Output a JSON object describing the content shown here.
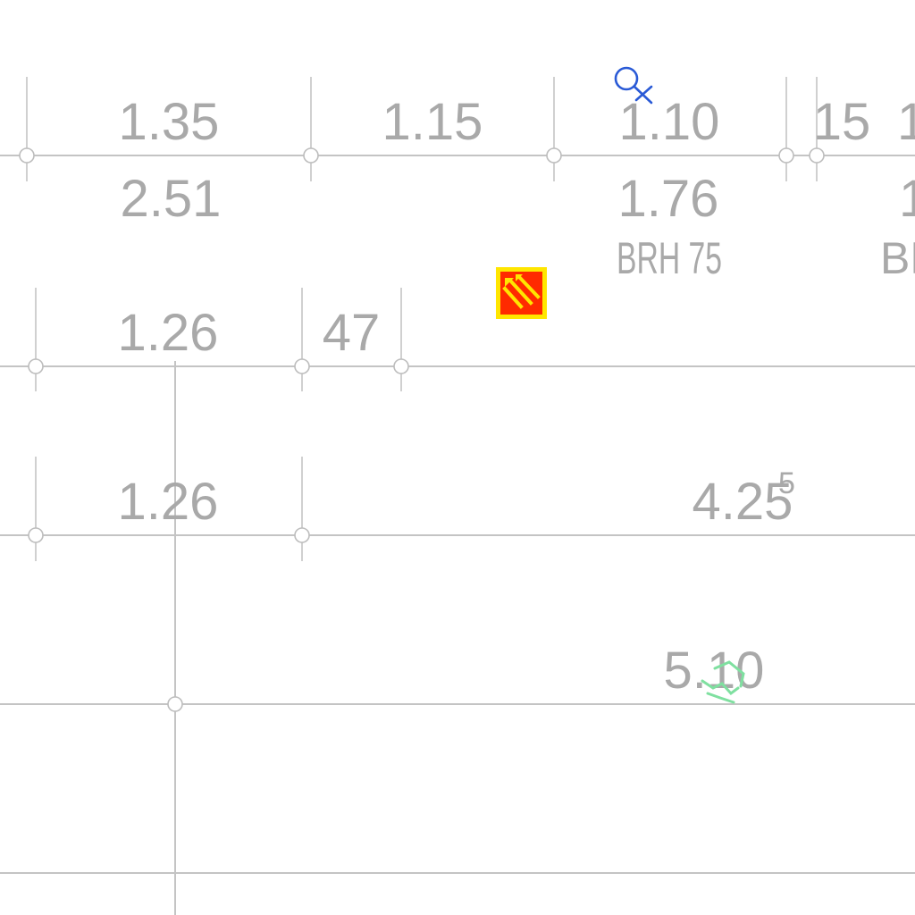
{
  "drawing": {
    "row1": [
      "1.35",
      "1.15",
      "1.10",
      "15",
      "1"
    ],
    "row2": [
      "2.51",
      "1.76",
      "1"
    ],
    "brh": [
      "BRH 75",
      "BR"
    ],
    "row3": [
      "1.26",
      "47"
    ],
    "row4": {
      "first": "1.26",
      "main": "4.25",
      "superscript": "5"
    },
    "row5": "5.10"
  },
  "colors": {
    "dimension_text": "#a9a9a9",
    "dimension_line": "#c4c4c4",
    "snap_marker": "#2a5ad6",
    "warning_red": "#ff2a00",
    "warning_yellow": "#ffe600",
    "green_marker": "#7fe0a0"
  },
  "icons": {
    "cursor": "snap-cursor-icon",
    "warning": "warning-tile-icon",
    "annotation": "green-annotation-icon"
  }
}
